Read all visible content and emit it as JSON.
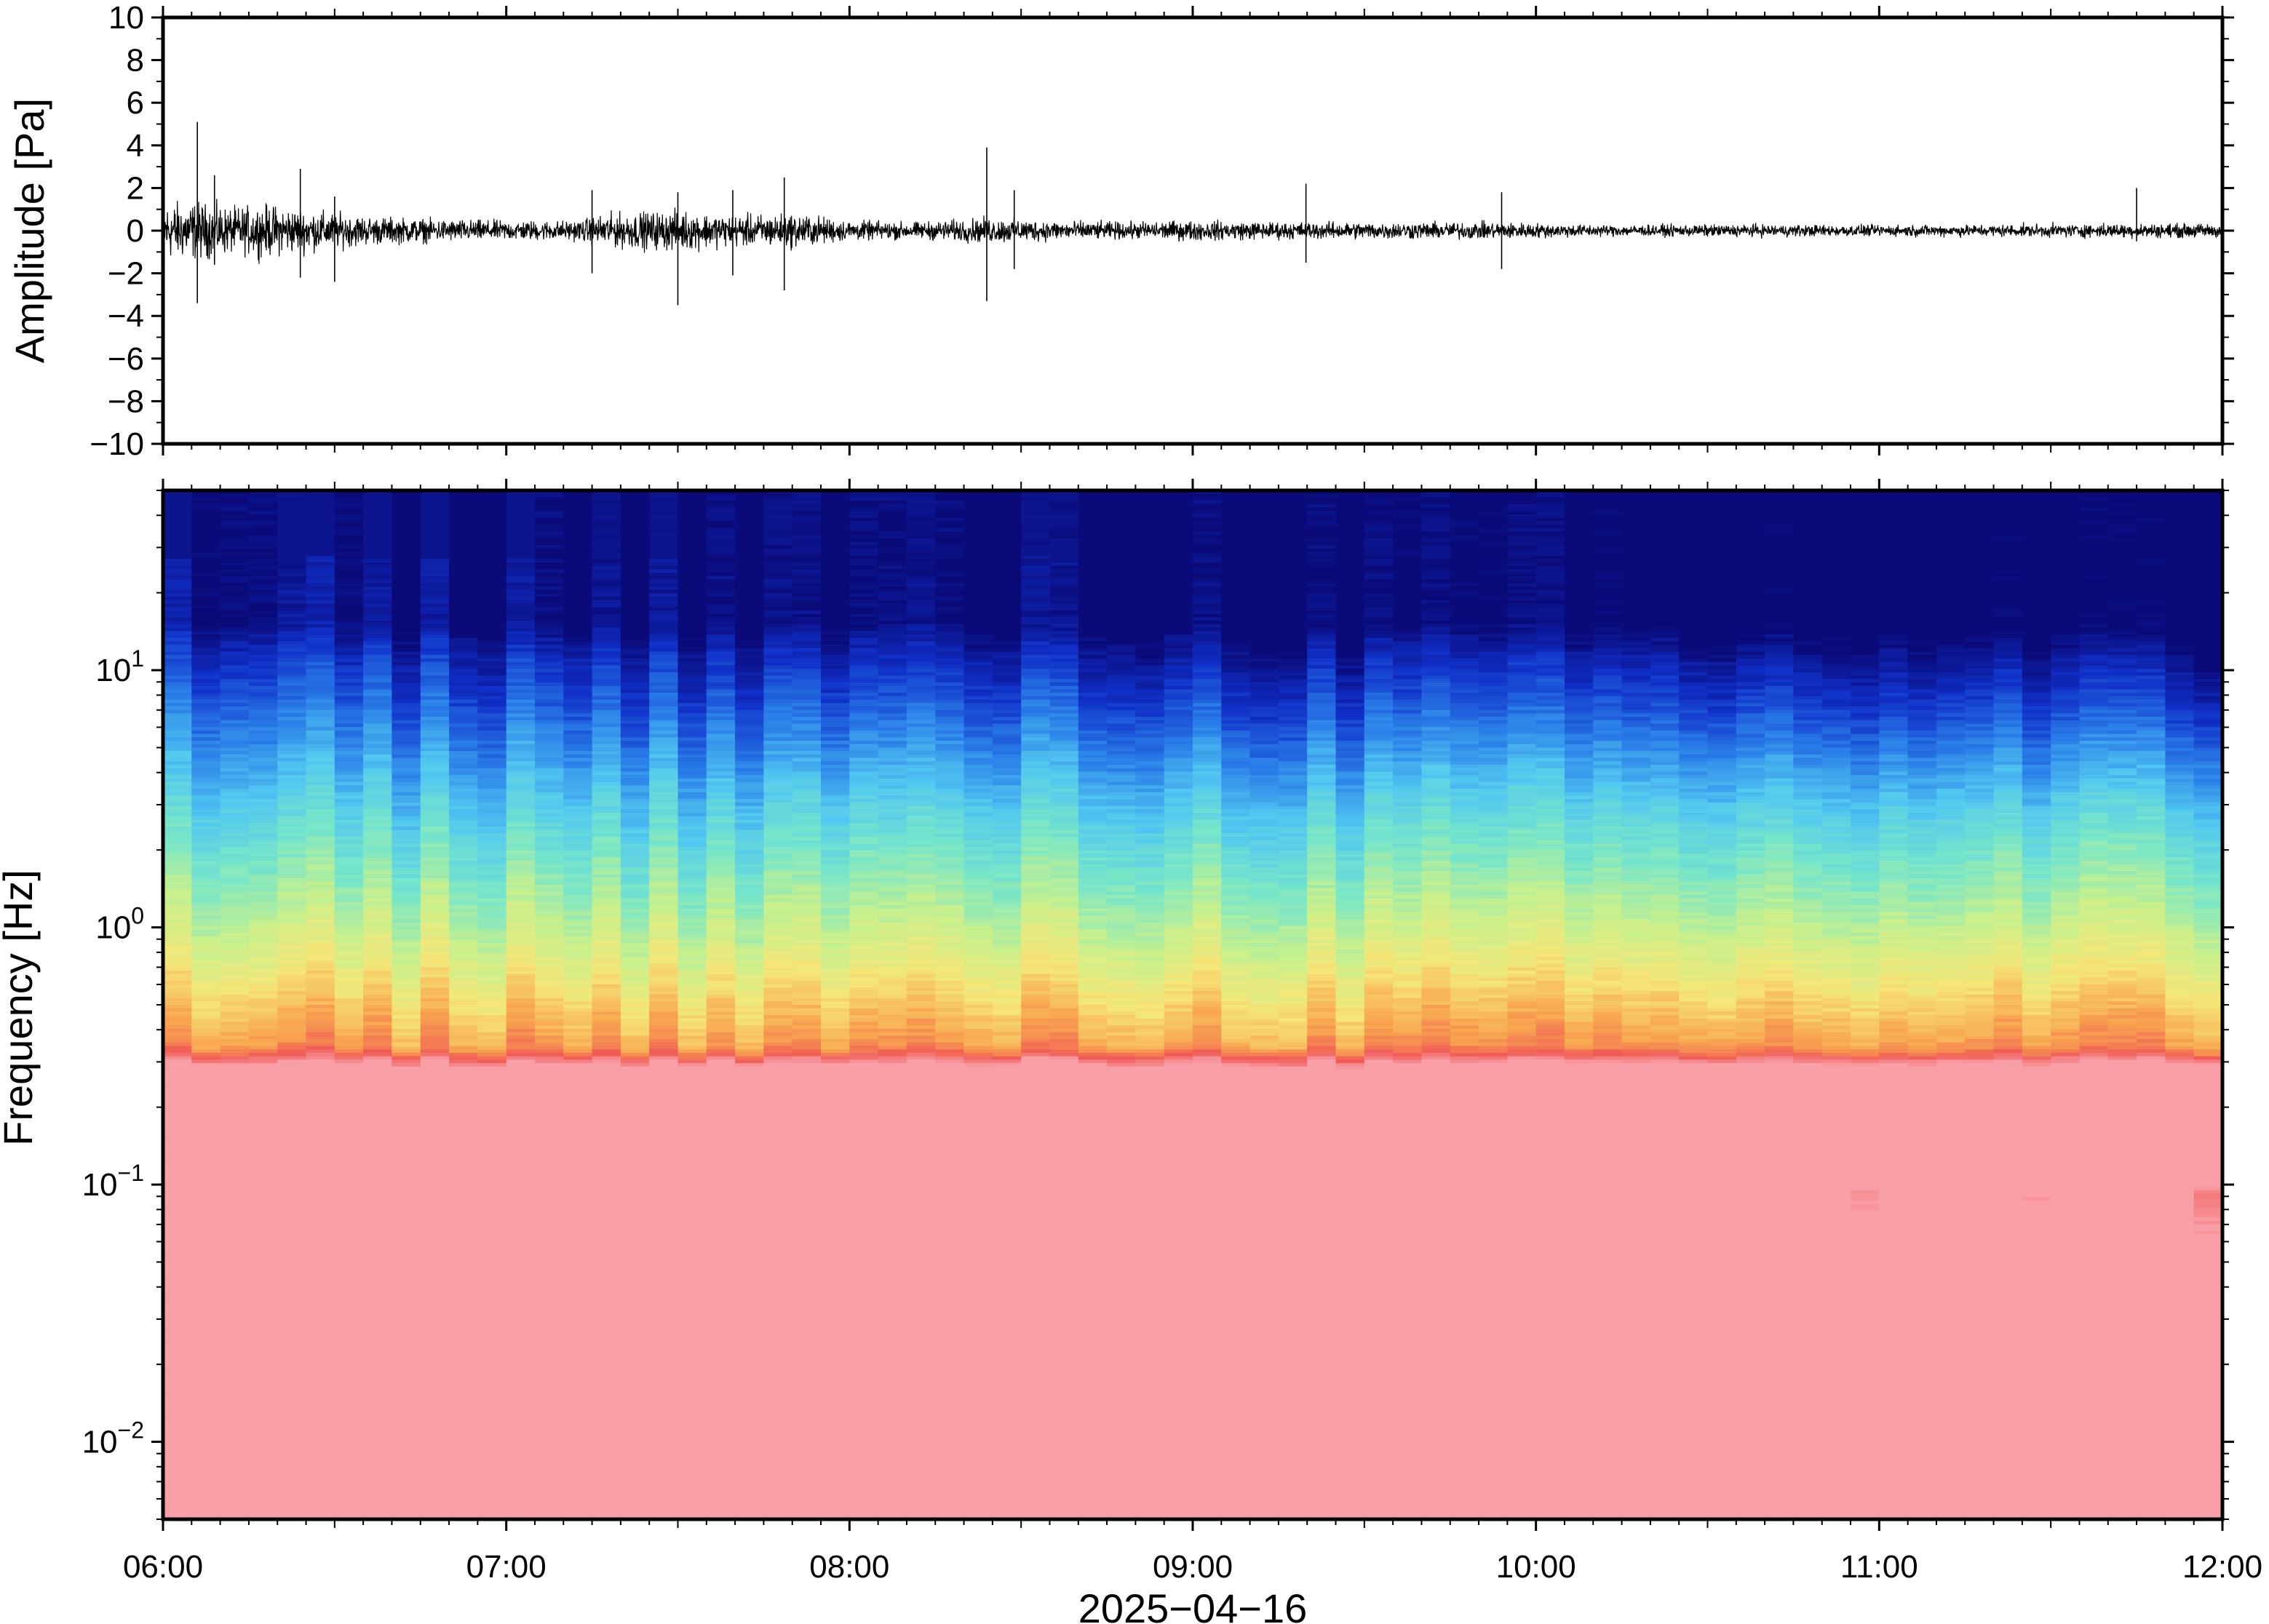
{
  "chart_data": [
    {
      "type": "line",
      "panel": "waveform",
      "ylabel": "Amplitude [Pa]",
      "ylim": [
        -10,
        10
      ],
      "yticks": [
        10,
        8,
        6,
        4,
        2,
        0,
        -2,
        -4,
        -6,
        -8,
        -10
      ],
      "ytick_labels": [
        "10",
        "8",
        "6",
        "4",
        "2",
        "0",
        "−2",
        "−4",
        "−6",
        "−8",
        "−10"
      ],
      "xlim": [
        "06:00",
        "12:00"
      ],
      "grid": false,
      "envelope": [
        [
          6.0,
          1.0
        ],
        [
          6.1,
          1.0
        ],
        [
          6.2,
          0.8
        ],
        [
          6.3,
          0.9
        ],
        [
          6.45,
          0.7
        ],
        [
          6.6,
          0.5
        ],
        [
          6.8,
          0.4
        ],
        [
          7.0,
          0.35
        ],
        [
          7.2,
          0.35
        ],
        [
          7.3,
          0.6
        ],
        [
          7.5,
          0.7
        ],
        [
          7.65,
          0.55
        ],
        [
          7.85,
          0.6
        ],
        [
          8.0,
          0.35
        ],
        [
          8.2,
          0.3
        ],
        [
          8.4,
          0.45
        ],
        [
          8.6,
          0.35
        ],
        [
          8.8,
          0.3
        ],
        [
          9.0,
          0.35
        ],
        [
          9.3,
          0.3
        ],
        [
          9.6,
          0.3
        ],
        [
          9.9,
          0.3
        ],
        [
          10.2,
          0.2
        ],
        [
          10.6,
          0.22
        ],
        [
          11.0,
          0.2
        ],
        [
          11.4,
          0.22
        ],
        [
          11.7,
          0.25
        ],
        [
          12.0,
          0.25
        ]
      ],
      "spikes": [
        [
          6.1,
          5.1,
          -3.4
        ],
        [
          6.15,
          2.6,
          -1.6
        ],
        [
          6.4,
          2.9,
          -2.2
        ],
        [
          6.5,
          1.6,
          -2.4
        ],
        [
          7.25,
          1.9,
          -2.0
        ],
        [
          7.5,
          1.8,
          -3.5
        ],
        [
          7.66,
          1.9,
          -2.1
        ],
        [
          7.81,
          2.5,
          -2.8
        ],
        [
          8.4,
          3.9,
          -3.3
        ],
        [
          8.48,
          1.9,
          -1.8
        ],
        [
          9.33,
          2.2,
          -1.5
        ],
        [
          9.9,
          1.8,
          -1.8
        ],
        [
          11.75,
          2.0,
          -0.5
        ]
      ]
    },
    {
      "type": "heatmap",
      "panel": "spectrogram",
      "ylabel": "Frequency [Hz]",
      "yscale": "log",
      "ylim": [
        0.005,
        50
      ],
      "ytick_labels": [
        {
          "base": "10",
          "exp": "−2",
          "value": 0.01
        },
        {
          "base": "10",
          "exp": "−1",
          "value": 0.1
        },
        {
          "base": "10",
          "exp": "0",
          "value": 1
        },
        {
          "base": "10",
          "exp": "1",
          "value": 10
        }
      ],
      "xlim": [
        "06:00",
        "12:00"
      ],
      "xtick_labels": [
        "06:00",
        "07:00",
        "08:00",
        "09:00",
        "10:00",
        "11:00",
        "12:00"
      ],
      "xlabel": "2025−04−16",
      "colormap": [
        "#0a0a78",
        "#1030c8",
        "#2a7ee8",
        "#52c8f0",
        "#78e6c8",
        "#c8f08c",
        "#f5e678",
        "#f8a650",
        "#f05a55",
        "#f8a0a8"
      ]
    }
  ]
}
